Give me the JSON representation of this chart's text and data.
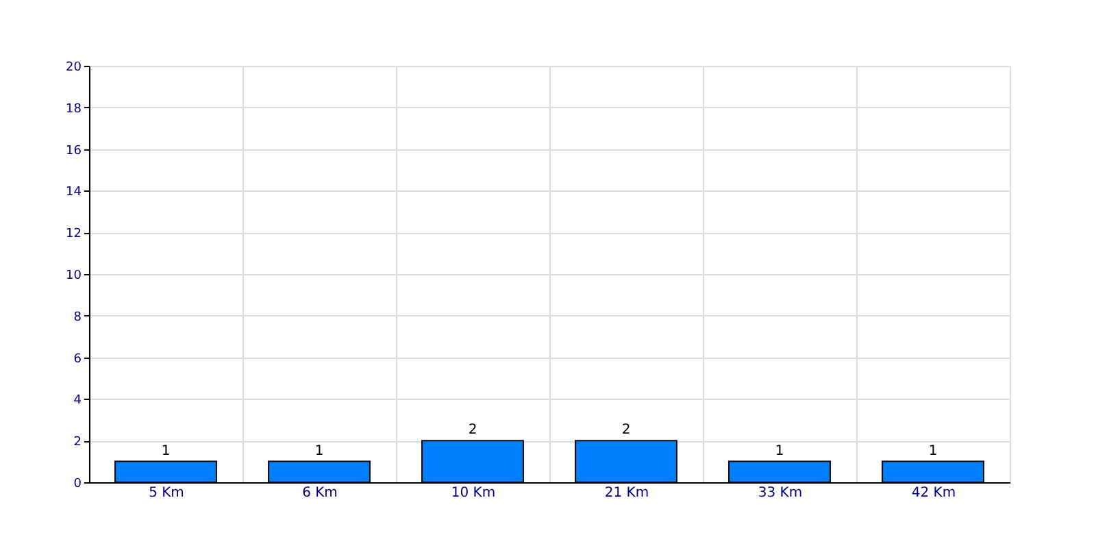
{
  "chart_data": {
    "type": "bar",
    "categories": [
      "5 Km",
      "6 Km",
      "10 Km",
      "21 Km",
      "33 Km",
      "42 Km"
    ],
    "values": [
      1,
      1,
      2,
      2,
      1,
      1
    ],
    "color": "#0080ff",
    "ylim": [
      0,
      20
    ],
    "yticks": [
      0,
      2,
      4,
      6,
      8,
      10,
      12,
      14,
      16,
      18,
      20
    ],
    "grid": true,
    "data_labels": true
  }
}
